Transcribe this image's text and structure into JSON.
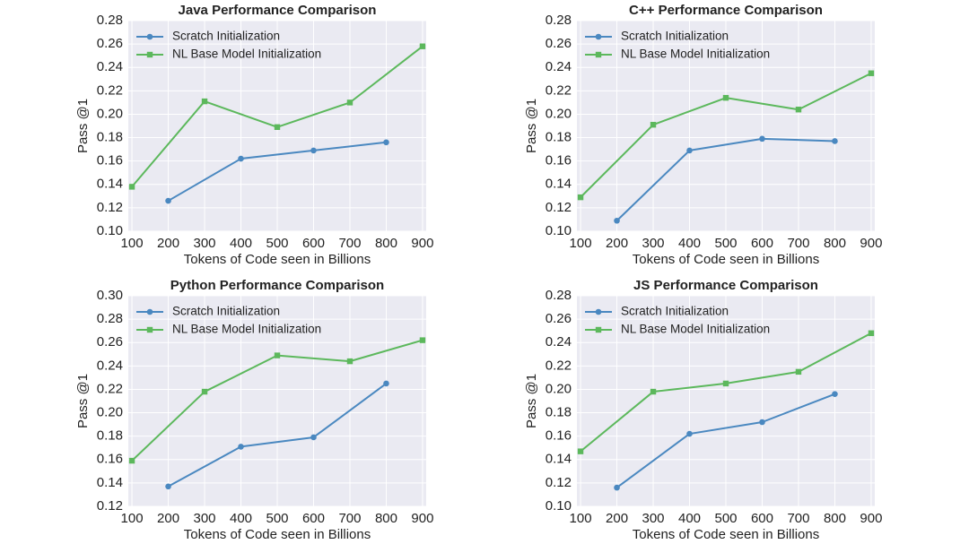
{
  "chart_data": [
    {
      "type": "line",
      "title": "Java Performance Comparison",
      "xlabel": "Tokens of Code seen in Billions",
      "ylabel": "Pass @1",
      "xlim": [
        90,
        910
      ],
      "ylim": [
        0.1,
        0.28
      ],
      "xticks": [
        100,
        200,
        300,
        400,
        500,
        600,
        700,
        800,
        900
      ],
      "yticks": [
        "0.10",
        "0.12",
        "0.14",
        "0.16",
        "0.18",
        "0.20",
        "0.22",
        "0.24",
        "0.26",
        "0.28"
      ],
      "legend_position": "top-left",
      "grid": true,
      "series": [
        {
          "name": "Scratch Initialization",
          "color": "#4a88c0",
          "marker": "circle",
          "x": [
            200,
            400,
            600,
            800
          ],
          "y": [
            0.126,
            0.162,
            0.169,
            0.176
          ]
        },
        {
          "name": "NL Base Model Initialization",
          "color": "#5cb85c",
          "marker": "square",
          "x": [
            100,
            300,
            500,
            700,
            900
          ],
          "y": [
            0.138,
            0.211,
            0.189,
            0.21,
            0.258
          ]
        }
      ]
    },
    {
      "type": "line",
      "title": "C++ Performance Comparison",
      "xlabel": "Tokens of Code seen in Billions",
      "ylabel": "Pass @1",
      "xlim": [
        90,
        910
      ],
      "ylim": [
        0.1,
        0.28
      ],
      "xticks": [
        100,
        200,
        300,
        400,
        500,
        600,
        700,
        800,
        900
      ],
      "yticks": [
        "0.10",
        "0.12",
        "0.14",
        "0.16",
        "0.18",
        "0.20",
        "0.22",
        "0.24",
        "0.26",
        "0.28"
      ],
      "legend_position": "top-left",
      "grid": true,
      "series": [
        {
          "name": "Scratch Initialization",
          "color": "#4a88c0",
          "marker": "circle",
          "x": [
            200,
            400,
            600,
            800
          ],
          "y": [
            0.109,
            0.169,
            0.179,
            0.177
          ]
        },
        {
          "name": "NL Base Model Initialization",
          "color": "#5cb85c",
          "marker": "square",
          "x": [
            100,
            300,
            500,
            700,
            900
          ],
          "y": [
            0.129,
            0.191,
            0.214,
            0.204,
            0.235
          ]
        }
      ]
    },
    {
      "type": "line",
      "title": "Python Performance Comparison",
      "xlabel": "Tokens of Code seen in Billions",
      "ylabel": "Pass @1",
      "xlim": [
        90,
        910
      ],
      "ylim": [
        0.12,
        0.3
      ],
      "xticks": [
        100,
        200,
        300,
        400,
        500,
        600,
        700,
        800,
        900
      ],
      "yticks": [
        "0.12",
        "0.14",
        "0.16",
        "0.18",
        "0.20",
        "0.22",
        "0.24",
        "0.26",
        "0.28",
        "0.30"
      ],
      "legend_position": "top-left",
      "grid": true,
      "series": [
        {
          "name": "Scratch Initialization",
          "color": "#4a88c0",
          "marker": "circle",
          "x": [
            200,
            400,
            600,
            800
          ],
          "y": [
            0.137,
            0.171,
            0.179,
            0.225
          ]
        },
        {
          "name": "NL Base Model Initialization",
          "color": "#5cb85c",
          "marker": "square",
          "x": [
            100,
            300,
            500,
            700,
            900
          ],
          "y": [
            0.159,
            0.218,
            0.249,
            0.244,
            0.262
          ]
        }
      ]
    },
    {
      "type": "line",
      "title": "JS Performance Comparison",
      "xlabel": "Tokens of Code seen in Billions",
      "ylabel": "Pass @1",
      "xlim": [
        90,
        910
      ],
      "ylim": [
        0.1,
        0.28
      ],
      "xticks": [
        100,
        200,
        300,
        400,
        500,
        600,
        700,
        800,
        900
      ],
      "yticks": [
        "0.10",
        "0.12",
        "0.14",
        "0.16",
        "0.18",
        "0.20",
        "0.22",
        "0.24",
        "0.26",
        "0.28"
      ],
      "legend_position": "top-left",
      "grid": true,
      "series": [
        {
          "name": "Scratch Initialization",
          "color": "#4a88c0",
          "marker": "circle",
          "x": [
            200,
            400,
            600,
            800
          ],
          "y": [
            0.116,
            0.162,
            0.172,
            0.196
          ]
        },
        {
          "name": "NL Base Model Initialization",
          "color": "#5cb85c",
          "marker": "square",
          "x": [
            100,
            300,
            500,
            700,
            900
          ],
          "y": [
            0.147,
            0.198,
            0.205,
            0.215,
            0.248
          ]
        }
      ]
    }
  ],
  "style": {
    "plot_background": "#eaeaf2",
    "grid_color": "#ffffff"
  }
}
